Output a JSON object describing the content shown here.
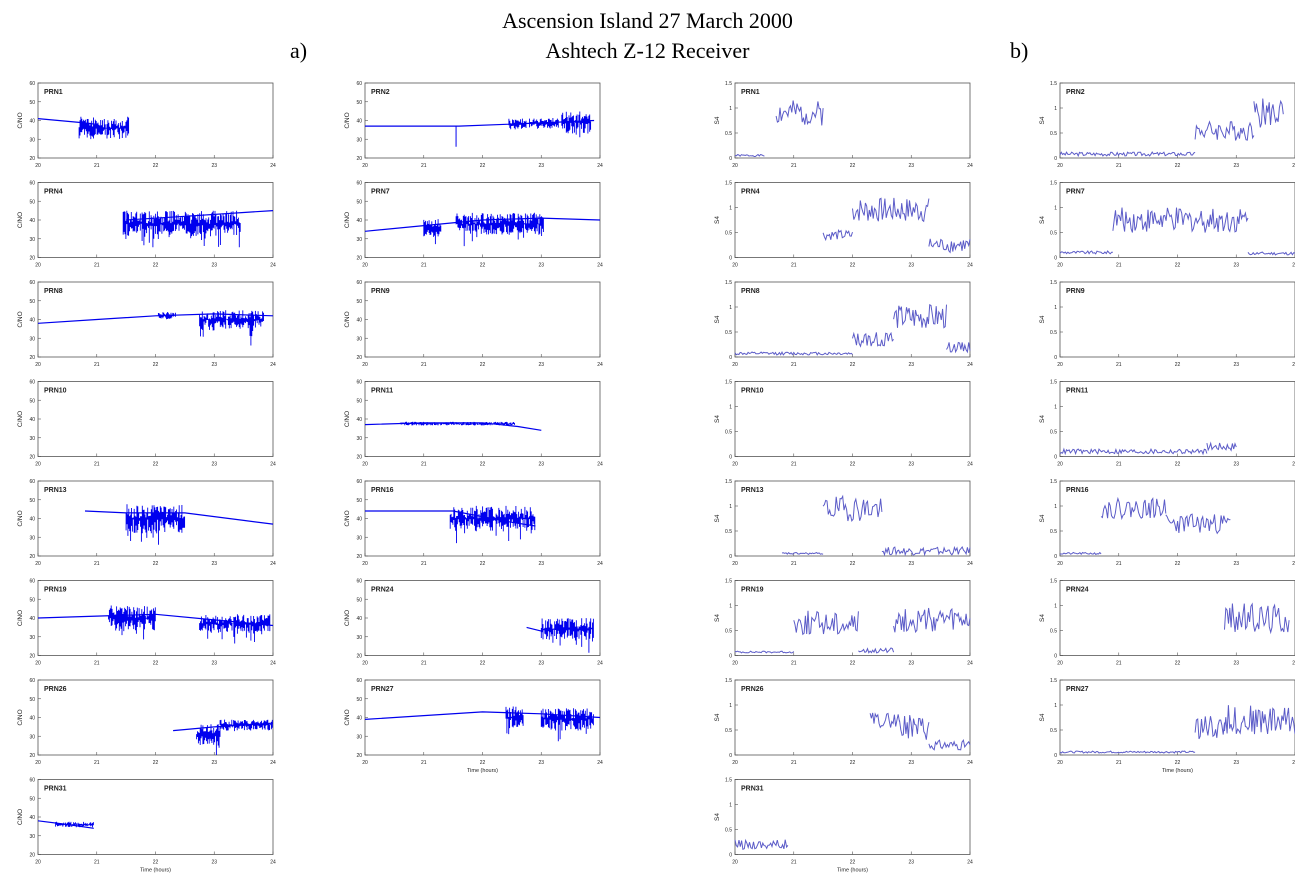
{
  "title": {
    "line1": "Ascension Island  27 March 2000",
    "line2": "Ashtech Z-12 Receiver"
  },
  "panel_tags": {
    "a": "a)",
    "b": "b)"
  },
  "colors": {
    "trace": "#0000ee",
    "s4_trace": "#5c5cc8",
    "frame": "#555555"
  },
  "chart_data": [
    {
      "type": "line",
      "group": "a",
      "ylabel": "C/NO",
      "xlabel": "Time (hours)",
      "x_ticks": [
        20,
        21,
        22,
        23,
        24
      ],
      "y_ticks": [
        20,
        30,
        40,
        50,
        60
      ],
      "xlim": [
        20,
        24
      ],
      "ylim": [
        20,
        60
      ],
      "grid": false,
      "panels": [
        {
          "label": "PRN1",
          "segments": [
            {
              "kind": "line",
              "x": [
                20,
                20.7,
                21.0
              ],
              "y": [
                41,
                39,
                38
              ]
            },
            {
              "kind": "noise",
              "x": [
                20.7,
                21.55
              ],
              "center": 36,
              "amp": 6,
              "spike": 9
            }
          ]
        },
        {
          "label": "PRN2",
          "segments": [
            {
              "kind": "line",
              "x": [
                20,
                21.6,
                22.4,
                23.2,
                23.9
              ],
              "y": [
                37,
                37,
                38,
                39,
                40
              ]
            },
            {
              "kind": "noise",
              "x": [
                22.45,
                22.75
              ],
              "center": 38,
              "amp": 3,
              "spike": 0
            },
            {
              "kind": "noise",
              "x": [
                22.8,
                23.3
              ],
              "center": 38.5,
              "amp": 3,
              "spike": 0
            },
            {
              "kind": "noise",
              "x": [
                23.35,
                23.85
              ],
              "center": 39,
              "amp": 6,
              "spike": 10
            },
            {
              "kind": "spike",
              "x": 21.55,
              "y1": 37,
              "y2": 26
            }
          ]
        },
        {
          "label": "PRN4",
          "segments": [
            {
              "kind": "line",
              "x": [
                21.5,
                22.5,
                23.5,
                24
              ],
              "y": [
                40,
                42,
                44,
                45
              ]
            },
            {
              "kind": "noise",
              "x": [
                21.45,
                23.45
              ],
              "center": 38,
              "amp": 7,
              "spike": 10
            }
          ]
        },
        {
          "label": "PRN7",
          "segments": [
            {
              "kind": "line",
              "x": [
                20,
                21,
                22,
                23,
                24
              ],
              "y": [
                34,
                37,
                40,
                41,
                40
              ]
            },
            {
              "kind": "noise",
              "x": [
                21.0,
                21.3
              ],
              "center": 36,
              "amp": 5,
              "spike": 8
            },
            {
              "kind": "noise",
              "x": [
                21.55,
                23.05
              ],
              "center": 38,
              "amp": 6,
              "spike": 10
            }
          ]
        },
        {
          "label": "PRN8",
          "segments": [
            {
              "kind": "line",
              "x": [
                20,
                21,
                22,
                23,
                24
              ],
              "y": [
                38,
                40,
                42,
                43,
                42
              ]
            },
            {
              "kind": "noise",
              "x": [
                22.05,
                22.35
              ],
              "center": 42,
              "amp": 2,
              "spike": 0
            },
            {
              "kind": "noise",
              "x": [
                22.75,
                23.85
              ],
              "center": 40,
              "amp": 5,
              "spike": 10
            }
          ]
        },
        {
          "label": "PRN9",
          "segments": []
        },
        {
          "label": "PRN10",
          "segments": []
        },
        {
          "label": "PRN11",
          "segments": [
            {
              "kind": "line",
              "x": [
                20,
                21,
                22,
                22.6,
                23.0
              ],
              "y": [
                37,
                38,
                38,
                36,
                34
              ]
            },
            {
              "kind": "noise",
              "x": [
                20.6,
                22.55
              ],
              "center": 37.5,
              "amp": 1,
              "spike": 0
            }
          ]
        },
        {
          "label": "PRN13",
          "segments": [
            {
              "kind": "line",
              "x": [
                20.8,
                21.5,
                22.5,
                23.5,
                24
              ],
              "y": [
                44,
                43,
                43,
                39,
                37
              ]
            },
            {
              "kind": "noise",
              "x": [
                21.5,
                22.5
              ],
              "center": 40,
              "amp": 8,
              "spike": 10
            }
          ]
        },
        {
          "label": "PRN16",
          "segments": [
            {
              "kind": "line",
              "x": [
                20,
                21.5,
                22.5,
                22.9
              ],
              "y": [
                44,
                44,
                38,
                36
              ]
            },
            {
              "kind": "noise",
              "x": [
                21.45,
                22.9
              ],
              "center": 40,
              "amp": 7,
              "spike": 8
            }
          ]
        },
        {
          "label": "PRN19",
          "segments": [
            {
              "kind": "line",
              "x": [
                20,
                21,
                22,
                23,
                24
              ],
              "y": [
                40,
                41,
                42,
                39,
                36
              ]
            },
            {
              "kind": "noise",
              "x": [
                21.2,
                22.0
              ],
              "center": 40,
              "amp": 7,
              "spike": 10
            },
            {
              "kind": "noise",
              "x": [
                22.75,
                23.95
              ],
              "center": 37,
              "amp": 5,
              "spike": 8
            }
          ]
        },
        {
          "label": "PRN24",
          "segments": [
            {
              "kind": "line",
              "x": [
                22.75,
                23.0
              ],
              "y": [
                35,
                33
              ]
            },
            {
              "kind": "noise",
              "x": [
                23.0,
                23.9
              ],
              "center": 34,
              "amp": 6,
              "spike": 8
            }
          ]
        },
        {
          "label": "PRN26",
          "segments": [
            {
              "kind": "line",
              "x": [
                22.3,
                23.0,
                24
              ],
              "y": [
                33,
                35,
                37
              ]
            },
            {
              "kind": "noise",
              "x": [
                22.7,
                23.1
              ],
              "center": 31,
              "amp": 6,
              "spike": 8
            },
            {
              "kind": "noise",
              "x": [
                23.1,
                24.0
              ],
              "center": 36,
              "amp": 3,
              "spike": 4
            }
          ]
        },
        {
          "label": "PRN27",
          "segments": [
            {
              "kind": "line",
              "x": [
                20,
                21,
                22,
                23,
                24
              ],
              "y": [
                39,
                41,
                43,
                42,
                40
              ]
            },
            {
              "kind": "noise",
              "x": [
                22.4,
                22.7
              ],
              "center": 40,
              "amp": 6,
              "spike": 8
            },
            {
              "kind": "noise",
              "x": [
                23.0,
                23.9
              ],
              "center": 39,
              "amp": 6,
              "spike": 8
            }
          ]
        },
        {
          "label": "PRN31",
          "segments": [
            {
              "kind": "line",
              "x": [
                20,
                20.5,
                20.95
              ],
              "y": [
                38,
                36,
                34
              ]
            },
            {
              "kind": "noise",
              "x": [
                20.3,
                20.95
              ],
              "center": 36,
              "amp": 1.5,
              "spike": 0
            }
          ]
        }
      ]
    },
    {
      "type": "line",
      "group": "b",
      "ylabel": "S4",
      "xlabel": "Time (hours)",
      "x_ticks": [
        20,
        21,
        22,
        23,
        24
      ],
      "y_ticks": [
        0,
        0.5,
        1,
        1.5
      ],
      "xlim": [
        20,
        24
      ],
      "ylim": [
        0,
        1.5
      ],
      "grid": false,
      "panels": [
        {
          "label": "PRN1",
          "segments": [
            {
              "kind": "s4",
              "x": [
                20,
                20.5,
                20.7
              ],
              "base": 0.05,
              "jitter": 0.02,
              "seed": 1
            },
            {
              "kind": "s4",
              "x": [
                20.7,
                21.5
              ],
              "base": 0.9,
              "jitter": 0.25,
              "seed": 2
            }
          ]
        },
        {
          "label": "PRN2",
          "segments": [
            {
              "kind": "s4",
              "x": [
                20,
                22.3
              ],
              "base": 0.08,
              "jitter": 0.04,
              "seed": 3
            },
            {
              "kind": "s4",
              "x": [
                22.3,
                23.3
              ],
              "base": 0.55,
              "jitter": 0.2,
              "seed": 4
            },
            {
              "kind": "s4",
              "x": [
                23.3,
                23.8
              ],
              "base": 0.9,
              "jitter": 0.3,
              "seed": 5
            }
          ]
        },
        {
          "label": "PRN4",
          "segments": [
            {
              "kind": "s4",
              "x": [
                21.5,
                22.0
              ],
              "base": 0.45,
              "jitter": 0.1,
              "seed": 6
            },
            {
              "kind": "s4",
              "x": [
                22.0,
                23.3
              ],
              "base": 0.95,
              "jitter": 0.25,
              "seed": 7
            },
            {
              "kind": "s4",
              "x": [
                23.3,
                24.0
              ],
              "base": 0.25,
              "jitter": 0.15,
              "seed": 8
            }
          ]
        },
        {
          "label": "PRN7",
          "segments": [
            {
              "kind": "s4",
              "x": [
                20,
                20.9
              ],
              "base": 0.1,
              "jitter": 0.03,
              "seed": 9
            },
            {
              "kind": "s4",
              "x": [
                20.9,
                23.2
              ],
              "base": 0.75,
              "jitter": 0.25,
              "seed": 10
            },
            {
              "kind": "s4",
              "x": [
                23.2,
                24.0
              ],
              "base": 0.08,
              "jitter": 0.03,
              "seed": 11
            }
          ]
        },
        {
          "label": "PRN8",
          "segments": [
            {
              "kind": "s4",
              "x": [
                20,
                22.0
              ],
              "base": 0.07,
              "jitter": 0.03,
              "seed": 12
            },
            {
              "kind": "s4",
              "x": [
                22.0,
                22.7
              ],
              "base": 0.35,
              "jitter": 0.15,
              "seed": 13
            },
            {
              "kind": "s4",
              "x": [
                22.7,
                23.6
              ],
              "base": 0.8,
              "jitter": 0.25,
              "seed": 14
            },
            {
              "kind": "s4",
              "x": [
                23.6,
                24.0
              ],
              "base": 0.2,
              "jitter": 0.1,
              "seed": 15
            }
          ]
        },
        {
          "label": "PRN9",
          "segments": []
        },
        {
          "label": "PRN10",
          "segments": []
        },
        {
          "label": "PRN11",
          "segments": [
            {
              "kind": "s4",
              "x": [
                20,
                22.5
              ],
              "base": 0.1,
              "jitter": 0.05,
              "seed": 16
            },
            {
              "kind": "s4",
              "x": [
                22.5,
                23.0
              ],
              "base": 0.2,
              "jitter": 0.08,
              "seed": 17
            }
          ]
        },
        {
          "label": "PRN13",
          "segments": [
            {
              "kind": "s4",
              "x": [
                20.8,
                21.5
              ],
              "base": 0.05,
              "jitter": 0.02,
              "seed": 18
            },
            {
              "kind": "s4",
              "x": [
                21.5,
                22.5
              ],
              "base": 0.95,
              "jitter": 0.25,
              "seed": 19
            },
            {
              "kind": "s4",
              "x": [
                22.5,
                24.0
              ],
              "base": 0.1,
              "jitter": 0.08,
              "seed": 20
            }
          ]
        },
        {
          "label": "PRN16",
          "segments": [
            {
              "kind": "s4",
              "x": [
                20,
                20.7
              ],
              "base": 0.05,
              "jitter": 0.02,
              "seed": 21
            },
            {
              "kind": "s4",
              "x": [
                20.7,
                21.8
              ],
              "base": 0.95,
              "jitter": 0.2,
              "seed": 22
            },
            {
              "kind": "s4",
              "x": [
                21.8,
                22.9
              ],
              "base": 0.65,
              "jitter": 0.2,
              "seed": 23
            }
          ]
        },
        {
          "label": "PRN19",
          "segments": [
            {
              "kind": "s4",
              "x": [
                20,
                21.0
              ],
              "base": 0.07,
              "jitter": 0.02,
              "seed": 24
            },
            {
              "kind": "s4",
              "x": [
                21.0,
                22.1
              ],
              "base": 0.65,
              "jitter": 0.25,
              "seed": 25
            },
            {
              "kind": "s4",
              "x": [
                22.1,
                22.7
              ],
              "base": 0.1,
              "jitter": 0.05,
              "seed": 26
            },
            {
              "kind": "s4",
              "x": [
                22.7,
                24.0
              ],
              "base": 0.7,
              "jitter": 0.25,
              "seed": 27
            }
          ]
        },
        {
          "label": "PRN24",
          "segments": [
            {
              "kind": "s4",
              "x": [
                22.8,
                23.9
              ],
              "base": 0.75,
              "jitter": 0.3,
              "seed": 28
            }
          ]
        },
        {
          "label": "PRN26",
          "segments": [
            {
              "kind": "s4",
              "x": [
                22.3,
                22.8
              ],
              "base": 0.7,
              "jitter": 0.15,
              "seed": 29
            },
            {
              "kind": "s4",
              "x": [
                22.8,
                23.3
              ],
              "base": 0.55,
              "jitter": 0.25,
              "seed": 30
            },
            {
              "kind": "s4",
              "x": [
                23.3,
                24.0
              ],
              "base": 0.2,
              "jitter": 0.1,
              "seed": 31
            }
          ]
        },
        {
          "label": "PRN27",
          "segments": [
            {
              "kind": "s4",
              "x": [
                20,
                22.3
              ],
              "base": 0.06,
              "jitter": 0.02,
              "seed": 32
            },
            {
              "kind": "s4",
              "x": [
                22.3,
                22.8
              ],
              "base": 0.55,
              "jitter": 0.25,
              "seed": 33
            },
            {
              "kind": "s4",
              "x": [
                22.8,
                24.0
              ],
              "base": 0.7,
              "jitter": 0.3,
              "seed": 34
            }
          ]
        },
        {
          "label": "PRN31",
          "segments": [
            {
              "kind": "s4",
              "x": [
                20,
                20.9
              ],
              "base": 0.2,
              "jitter": 0.1,
              "seed": 35
            }
          ]
        }
      ]
    }
  ]
}
